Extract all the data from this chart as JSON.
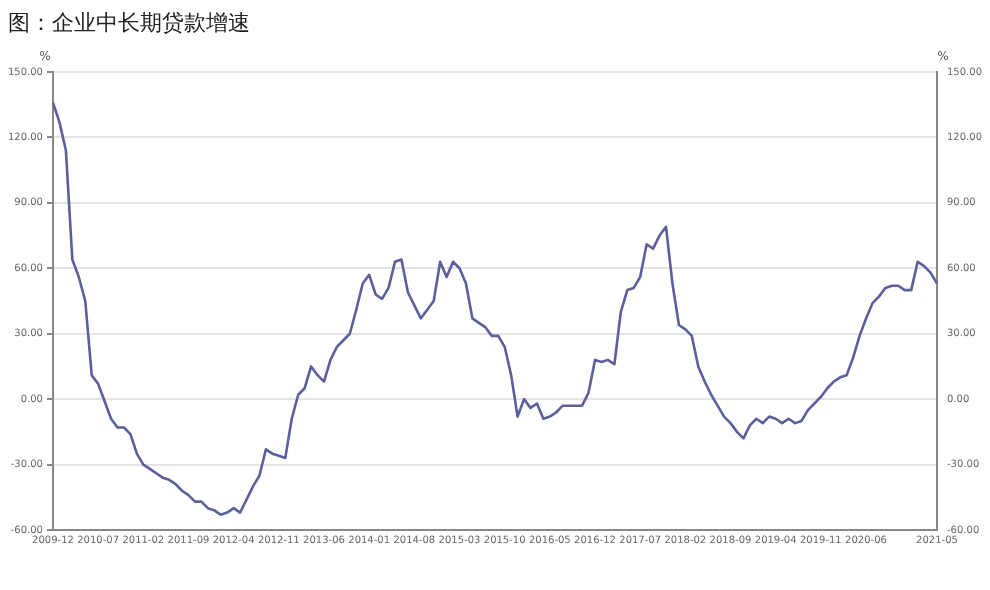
{
  "chart_data": {
    "type": "line",
    "title": "图：企业中长期贷款增速",
    "ylabel": "%",
    "y2label": "%",
    "categories": [
      "2009-12",
      null,
      null,
      null,
      null,
      null,
      null,
      "2010-07",
      null,
      null,
      null,
      null,
      null,
      null,
      "2011-02",
      null,
      null,
      null,
      null,
      null,
      null,
      "2011-09",
      null,
      null,
      null,
      null,
      null,
      null,
      "2012-04",
      null,
      null,
      null,
      null,
      null,
      null,
      "2012-11",
      null,
      null,
      null,
      null,
      null,
      null,
      "2013-06",
      null,
      null,
      null,
      null,
      null,
      null,
      "2014-01",
      null,
      null,
      null,
      null,
      null,
      null,
      "2014-08",
      null,
      null,
      null,
      null,
      null,
      null,
      "2015-03",
      null,
      null,
      null,
      null,
      null,
      null,
      "2015-10",
      null,
      null,
      null,
      null,
      null,
      null,
      "2016-05",
      null,
      null,
      null,
      null,
      null,
      null,
      "2016-12",
      null,
      null,
      null,
      null,
      null,
      null,
      "2017-07",
      null,
      null,
      null,
      null,
      null,
      null,
      "2018-02",
      null,
      null,
      null,
      null,
      null,
      null,
      "2018-09",
      null,
      null,
      null,
      null,
      null,
      null,
      "2019-04",
      null,
      null,
      null,
      null,
      null,
      null,
      "2019-11",
      null,
      null,
      null,
      null,
      null,
      null,
      "2020-06",
      null,
      null,
      null,
      null,
      null,
      null,
      null,
      null,
      null,
      null,
      "2021-05"
    ],
    "series": [
      {
        "color": "#5b5f9c",
        "values": [
          136,
          127,
          114,
          64,
          56,
          45,
          11,
          7,
          -1,
          -9,
          -13,
          -13,
          -16,
          -25,
          -30,
          -32,
          -34,
          -36,
          -37,
          -39,
          -42,
          -44,
          -47,
          -47,
          -50,
          -51,
          -53,
          -52,
          -50,
          -52,
          -46,
          -40,
          -35,
          -23,
          -25,
          -26,
          -27,
          -9,
          2,
          5,
          15,
          11,
          8,
          18,
          24,
          27,
          30,
          41,
          53,
          57,
          48,
          46,
          51,
          63,
          64,
          49,
          43,
          37,
          41,
          45,
          63,
          56,
          63,
          60,
          53,
          37,
          35,
          33,
          29,
          29,
          24,
          11,
          -8,
          0,
          -4,
          -2,
          -9,
          -8,
          -6,
          -3,
          -3,
          -3,
          -3,
          3,
          18,
          17,
          18,
          16,
          40,
          50,
          51,
          56,
          71,
          69,
          75,
          79,
          53,
          34,
          32,
          29,
          15,
          8,
          2,
          -3,
          -8,
          -11,
          -15,
          -18,
          -12,
          -9,
          -11,
          -8,
          -9,
          -11,
          -9,
          -11,
          -10,
          -5,
          -2,
          1,
          5,
          8,
          10,
          11,
          19,
          29,
          37,
          44,
          47,
          51,
          52,
          52,
          50,
          50,
          63,
          61,
          58,
          53
        ]
      }
    ],
    "ylim": [
      -60,
      150
    ],
    "yticks": [
      {
        "value": -60,
        "label": "-60.00"
      },
      {
        "value": -30,
        "label": "-30.00"
      },
      {
        "value": 0,
        "label": "0.00"
      },
      {
        "value": 30,
        "label": "30.00"
      },
      {
        "value": 60,
        "label": "60.00"
      },
      {
        "value": 90,
        "label": "90.00"
      },
      {
        "value": 120,
        "label": "120.00"
      },
      {
        "value": 150,
        "label": "150.00"
      }
    ],
    "y2lim": [
      -60,
      150
    ],
    "y2ticks": [
      {
        "value": -60,
        "label": "-60.00"
      },
      {
        "value": -30,
        "label": "-30.00"
      },
      {
        "value": 0,
        "label": "0.00"
      },
      {
        "value": 30,
        "label": "30.00"
      },
      {
        "value": 60,
        "label": "60.00"
      },
      {
        "value": 90,
        "label": "90.00"
      },
      {
        "value": 120,
        "label": "120.00"
      },
      {
        "value": 150,
        "label": "150.00"
      }
    ],
    "grid": "y",
    "marker": "none",
    "line_style": "solid"
  }
}
